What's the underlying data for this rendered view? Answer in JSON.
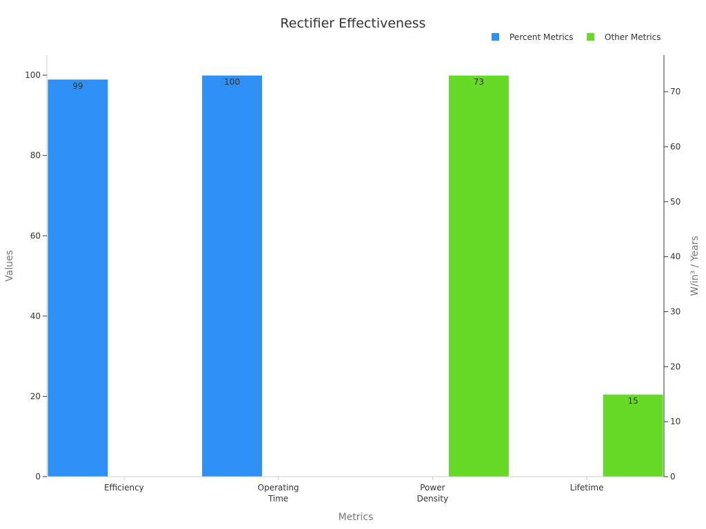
{
  "chart_data": {
    "type": "bar",
    "title": "Rectifier Effectiveness",
    "xlabel": "Metrics",
    "ylabel_left": "Values",
    "ylabel_right": "W/in³ / Years",
    "categories": [
      "Efficiency",
      "Operating Time",
      "Power Density",
      "Lifetime"
    ],
    "category_lines": [
      [
        "Efficiency"
      ],
      [
        "Operating",
        "Time"
      ],
      [
        "Power",
        "Density"
      ],
      [
        "Lifetime"
      ]
    ],
    "series": [
      {
        "name": "Percent Metrics",
        "axis": "left",
        "color": "#2e8ff5",
        "values": [
          99,
          100,
          null,
          null
        ]
      },
      {
        "name": "Other Metrics",
        "axis": "right",
        "color": "#66da26",
        "values": [
          null,
          null,
          73,
          15
        ]
      }
    ],
    "ylim_left": [
      0,
      105
    ],
    "yticks_left": [
      0,
      20,
      40,
      60,
      80,
      100
    ],
    "ylim_right": [
      0,
      76.65
    ],
    "yticks_right": [
      0,
      10,
      20,
      30,
      40,
      50,
      60,
      70
    ],
    "legend_position": "top-right",
    "grid": false
  }
}
